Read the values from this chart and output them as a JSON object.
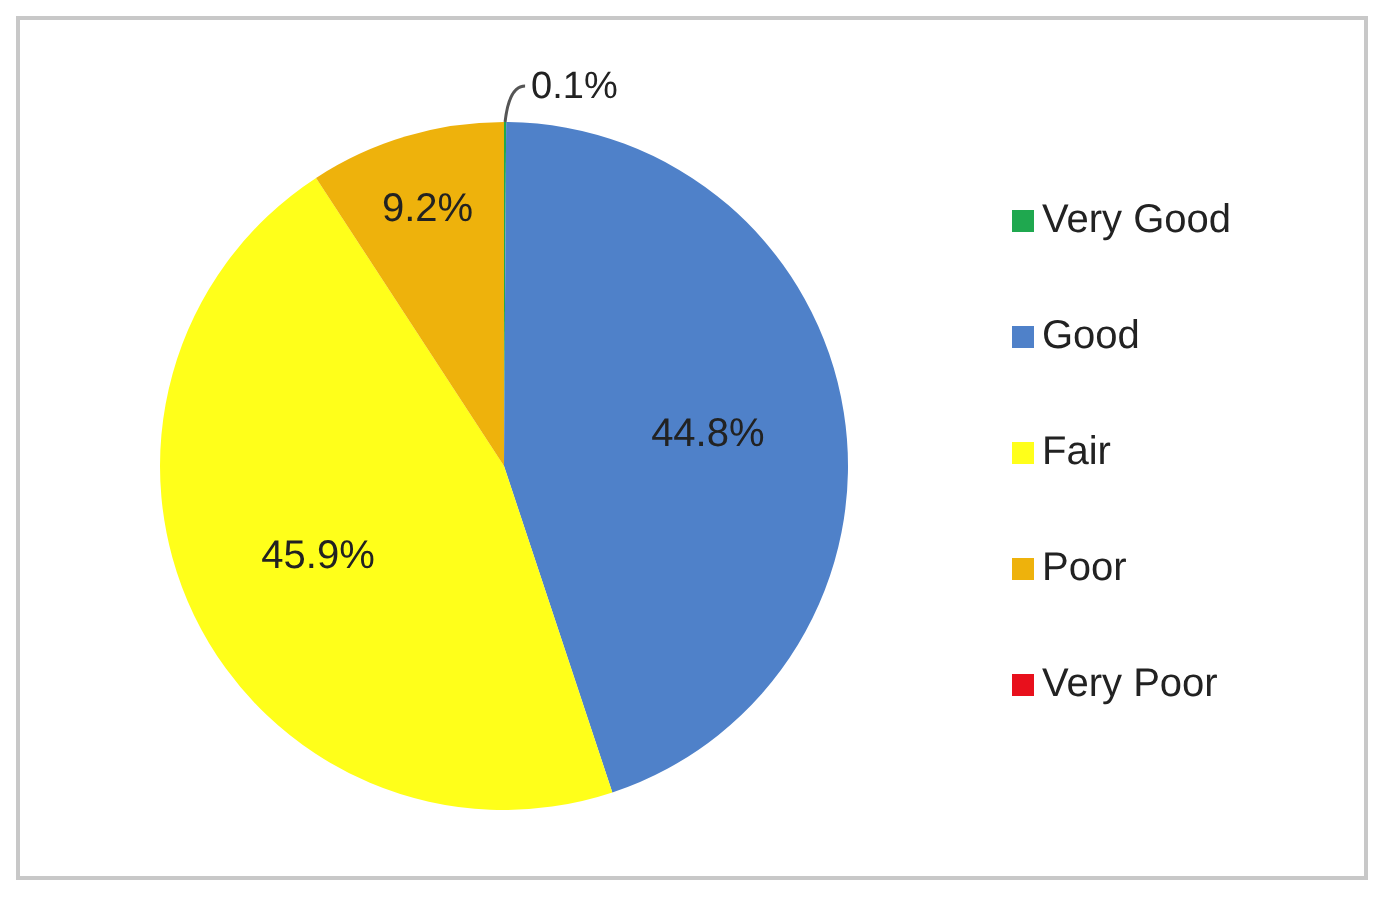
{
  "chart_data": {
    "type": "pie",
    "categories": [
      "Very Good",
      "Good",
      "Fair",
      "Poor",
      "Very Poor"
    ],
    "values": [
      0.1,
      44.8,
      45.9,
      9.2,
      0
    ],
    "colors": [
      "#1fa84f",
      "#4f81c9",
      "#ffff1a",
      "#eeb20c",
      "#e8101c"
    ],
    "value_labels": [
      "0.1%",
      "44.8%",
      "45.9%",
      "9.2%",
      null
    ],
    "legend": "right"
  }
}
